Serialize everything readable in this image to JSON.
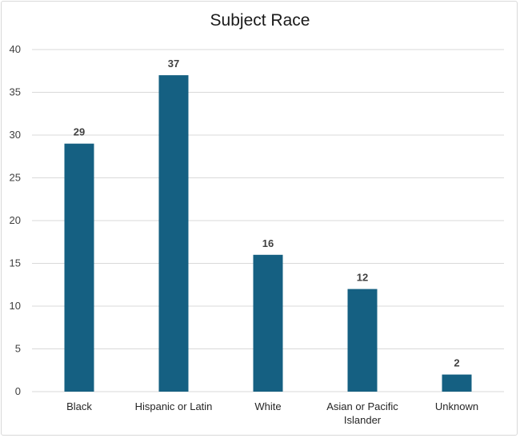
{
  "chart_data": {
    "type": "bar",
    "title": "Subject Race",
    "xlabel": "",
    "ylabel": "",
    "categories": [
      "Black",
      "Hispanic or Latin",
      "White",
      "Asian or Pacific Islander",
      "Unknown"
    ],
    "category_lines": [
      [
        "Black"
      ],
      [
        "Hispanic or Latin"
      ],
      [
        "White"
      ],
      [
        "Asian or Pacific",
        "Islander"
      ],
      [
        "Unknown"
      ]
    ],
    "values": [
      29,
      37,
      16,
      12,
      2
    ],
    "data_labels": [
      "29",
      "37",
      "16",
      "12",
      "2"
    ],
    "ylim": [
      0,
      40
    ],
    "yticks": [
      0,
      5,
      10,
      15,
      20,
      25,
      30,
      35,
      40
    ],
    "grid": true,
    "legend": "none",
    "colors": {
      "bar": "#156082",
      "grid": "#d9d9d9"
    }
  }
}
